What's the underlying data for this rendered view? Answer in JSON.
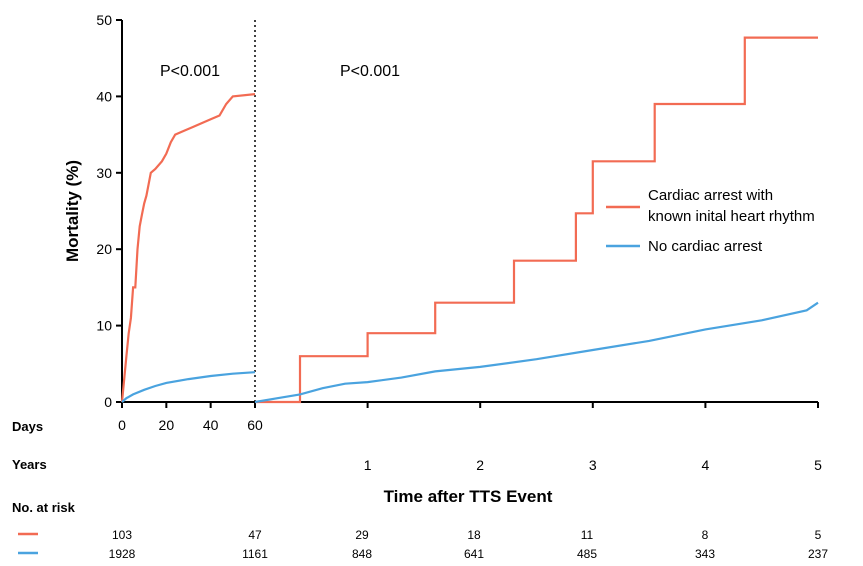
{
  "chart_data": {
    "type": "line",
    "ylabel": "Mortality (%)",
    "xlabel": "Time after TTS Event",
    "y_ticks": [
      "0",
      "10",
      "20",
      "30",
      "40",
      "50"
    ],
    "ylim": [
      0,
      50
    ],
    "days_label": "Days",
    "days_ticks": [
      "0",
      "20",
      "40",
      "60"
    ],
    "days_range": [
      0,
      60
    ],
    "years_label": "Years",
    "years_ticks": [
      "1",
      "2",
      "3",
      "4",
      "5"
    ],
    "years_range": [
      0,
      5
    ],
    "p_values": [
      "P<0.001",
      "P<0.001"
    ],
    "legend_position": "right",
    "series": [
      {
        "name": "Cardiac arrest with known inital heart rhythm",
        "color": "#f26b53",
        "days": [
          [
            0,
            0
          ],
          [
            1,
            3
          ],
          [
            2,
            6
          ],
          [
            3,
            9
          ],
          [
            4,
            11
          ],
          [
            5,
            15
          ],
          [
            6,
            15
          ],
          [
            7,
            20
          ],
          [
            8,
            23
          ],
          [
            9,
            24.5
          ],
          [
            10,
            26
          ],
          [
            11,
            27
          ],
          [
            12,
            28.5
          ],
          [
            13,
            30
          ],
          [
            15,
            30.5
          ],
          [
            18,
            31.5
          ],
          [
            20,
            32.5
          ],
          [
            22,
            34
          ],
          [
            24,
            35
          ],
          [
            28,
            35.5
          ],
          [
            32,
            36
          ],
          [
            36,
            36.5
          ],
          [
            40,
            37
          ],
          [
            44,
            37.5
          ],
          [
            47,
            39
          ],
          [
            50,
            40
          ],
          [
            60,
            40.3
          ]
        ],
        "years": [
          [
            0,
            0
          ],
          [
            0.4,
            0
          ],
          [
            0.4,
            6
          ],
          [
            1.0,
            6
          ],
          [
            1.0,
            9
          ],
          [
            1.6,
            9
          ],
          [
            1.6,
            13
          ],
          [
            2.3,
            13
          ],
          [
            2.3,
            18.5
          ],
          [
            2.85,
            18.5
          ],
          [
            2.85,
            24.7
          ],
          [
            3.0,
            24.7
          ],
          [
            3.0,
            31.5
          ],
          [
            3.55,
            31.5
          ],
          [
            3.55,
            39
          ],
          [
            4.35,
            39
          ],
          [
            4.35,
            47.7
          ],
          [
            5,
            47.7
          ]
        ],
        "at_risk": [
          "103",
          "47",
          "29",
          "18",
          "11",
          "8",
          "5"
        ]
      },
      {
        "name": "No cardiac arrest",
        "color": "#4aa3df",
        "days": [
          [
            0,
            0
          ],
          [
            2,
            0.5
          ],
          [
            5,
            1
          ],
          [
            10,
            1.6
          ],
          [
            15,
            2.1
          ],
          [
            20,
            2.5
          ],
          [
            30,
            3
          ],
          [
            40,
            3.4
          ],
          [
            50,
            3.7
          ],
          [
            60,
            3.9
          ]
        ],
        "years": [
          [
            0,
            0
          ],
          [
            0.2,
            0.5
          ],
          [
            0.4,
            1
          ],
          [
            0.6,
            1.8
          ],
          [
            0.8,
            2.4
          ],
          [
            1,
            2.6
          ],
          [
            1.3,
            3.2
          ],
          [
            1.6,
            4
          ],
          [
            2,
            4.6
          ],
          [
            2.5,
            5.6
          ],
          [
            3,
            6.8
          ],
          [
            3.5,
            8
          ],
          [
            4,
            9.5
          ],
          [
            4.5,
            10.7
          ],
          [
            4.9,
            12
          ],
          [
            5,
            13
          ]
        ],
        "at_risk": [
          "1928",
          "1161",
          "848",
          "641",
          "485",
          "343",
          "237"
        ]
      }
    ],
    "at_risk_label": "No. at risk"
  }
}
